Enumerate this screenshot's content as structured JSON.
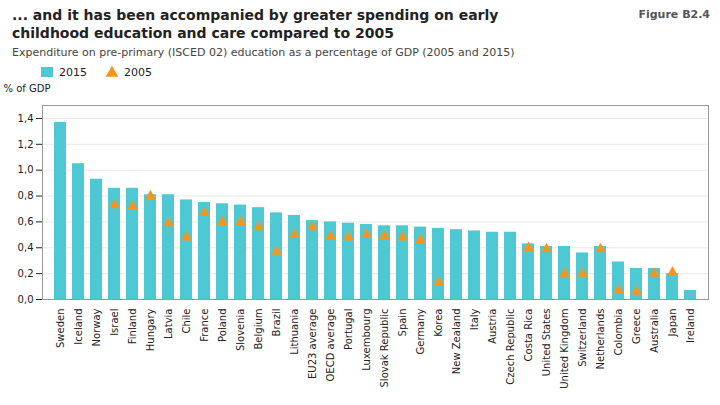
{
  "chart_data": {
    "type": "bar",
    "title": "... and it has been accompanied by greater spending on early\nchildhood education and care compared to 2005",
    "subtitle": "Expenditure on pre-primary (ISCED 02) education as a percentage of GDP (2005 and 2015)",
    "annotations": [
      "Figure B2.4"
    ],
    "ylabel": "% of GDP",
    "categories": [
      "Sweden",
      "Iceland",
      "Norway",
      "Israel",
      "Finland",
      "Hungary",
      "Latvia",
      "Chile",
      "France",
      "Poland",
      "Slovenia",
      "Belgium",
      "Brazil",
      "Lithuania",
      "EU23 average",
      "OECD average",
      "Portugal",
      "Luxembourg",
      "Slovak Republic",
      "Spain",
      "Germany",
      "Korea",
      "New Zealand",
      "Italy",
      "Austria",
      "Czech Republic",
      "Costa Rica",
      "United States",
      "United Kingdom",
      "Switzerland",
      "Netherlands",
      "Colombia",
      "Greece",
      "Australia",
      "Japan",
      "Ireland"
    ],
    "series": [
      {
        "name": "2015",
        "type": "bar",
        "color": "#4ec9d4",
        "values": [
          1.37,
          1.05,
          0.93,
          0.86,
          0.86,
          0.81,
          0.81,
          0.77,
          0.75,
          0.74,
          0.73,
          0.71,
          0.67,
          0.65,
          0.61,
          0.6,
          0.59,
          0.58,
          0.57,
          0.57,
          0.56,
          0.55,
          0.54,
          0.53,
          0.52,
          0.52,
          0.43,
          0.41,
          0.41,
          0.36,
          0.41,
          0.29,
          0.24,
          0.24,
          0.2,
          0.07
        ]
      },
      {
        "name": "2005",
        "type": "scatter",
        "marker": "triangle",
        "color": "#f7941d",
        "values": [
          null,
          null,
          null,
          0.73,
          0.72,
          0.8,
          0.59,
          0.48,
          0.67,
          0.6,
          0.6,
          0.56,
          0.37,
          0.5,
          0.56,
          0.49,
          0.48,
          0.5,
          0.49,
          0.48,
          0.46,
          0.13,
          null,
          null,
          null,
          null,
          0.4,
          0.39,
          0.2,
          0.2,
          0.39,
          0.07,
          0.06,
          0.2,
          0.21,
          null
        ]
      }
    ],
    "ylim": [
      0,
      1.5
    ],
    "yticks": [
      {
        "value": 0.0,
        "label": "0,0"
      },
      {
        "value": 0.2,
        "label": "0,2"
      },
      {
        "value": 0.4,
        "label": "0,4"
      },
      {
        "value": 0.6,
        "label": "0,6"
      },
      {
        "value": 0.8,
        "label": "0,8"
      },
      {
        "value": 1.0,
        "label": "1,0"
      },
      {
        "value": 1.2,
        "label": "1,2"
      },
      {
        "value": 1.4,
        "label": "1,4"
      }
    ],
    "grid": true,
    "legend": "top"
  }
}
